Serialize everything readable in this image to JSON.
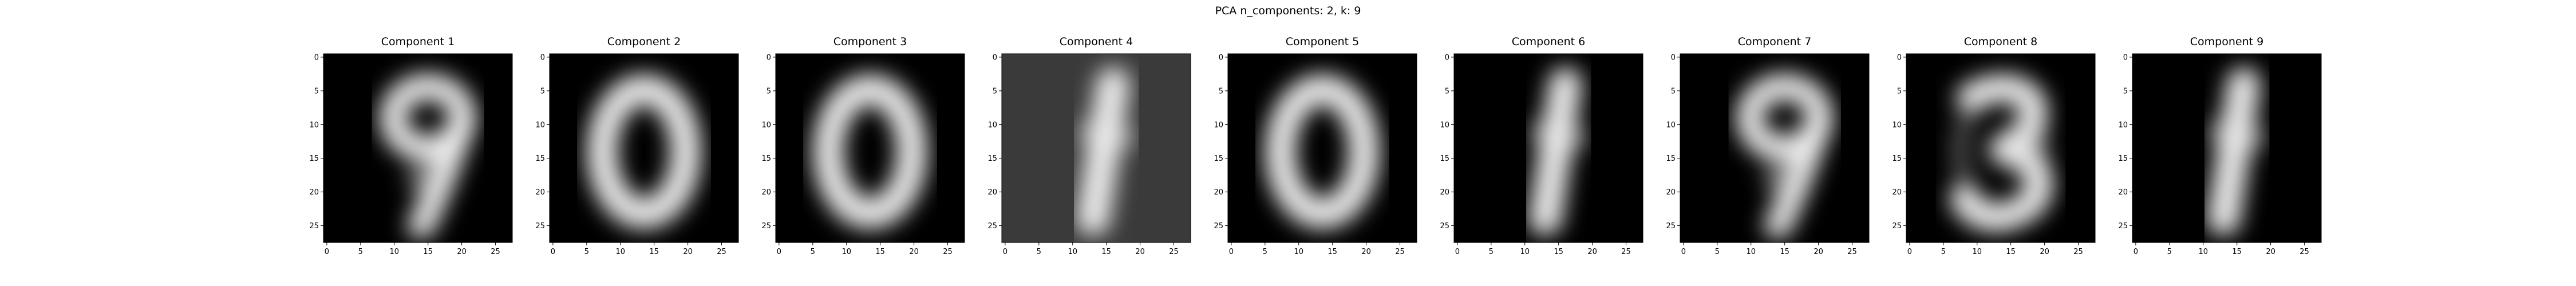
{
  "figure": {
    "title": "PCA n_components: 2, k: 9"
  },
  "chart_data": [
    {
      "type": "heatmap",
      "title": "Component 1",
      "x_ticks": [
        0,
        5,
        10,
        15,
        20,
        25
      ],
      "y_ticks": [
        0,
        5,
        10,
        15,
        20,
        25
      ],
      "xlim": [
        -0.5,
        27.5
      ],
      "ylim": [
        27.5,
        -0.5
      ],
      "colormap": "gray",
      "background": "#000000",
      "depicted_digit": "9"
    },
    {
      "type": "heatmap",
      "title": "Component 2",
      "x_ticks": [
        0,
        5,
        10,
        15,
        20,
        25
      ],
      "y_ticks": [
        0,
        5,
        10,
        15,
        20,
        25
      ],
      "xlim": [
        -0.5,
        27.5
      ],
      "ylim": [
        27.5,
        -0.5
      ],
      "colormap": "gray",
      "background": "#000000",
      "depicted_digit": "0"
    },
    {
      "type": "heatmap",
      "title": "Component 3",
      "x_ticks": [
        0,
        5,
        10,
        15,
        20,
        25
      ],
      "y_ticks": [
        0,
        5,
        10,
        15,
        20,
        25
      ],
      "xlim": [
        -0.5,
        27.5
      ],
      "ylim": [
        27.5,
        -0.5
      ],
      "colormap": "gray",
      "background": "#000000",
      "depicted_digit": "0"
    },
    {
      "type": "heatmap",
      "title": "Component 4",
      "x_ticks": [
        0,
        5,
        10,
        15,
        20,
        25
      ],
      "y_ticks": [
        0,
        5,
        10,
        15,
        20,
        25
      ],
      "xlim": [
        -0.5,
        27.5
      ],
      "ylim": [
        27.5,
        -0.5
      ],
      "colormap": "gray",
      "background": "#3a3a3a",
      "depicted_digit": "1"
    },
    {
      "type": "heatmap",
      "title": "Component 5",
      "x_ticks": [
        0,
        5,
        10,
        15,
        20,
        25
      ],
      "y_ticks": [
        0,
        5,
        10,
        15,
        20,
        25
      ],
      "xlim": [
        -0.5,
        27.5
      ],
      "ylim": [
        27.5,
        -0.5
      ],
      "colormap": "gray",
      "background": "#000000",
      "depicted_digit": "0"
    },
    {
      "type": "heatmap",
      "title": "Component 6",
      "x_ticks": [
        0,
        5,
        10,
        15,
        20,
        25
      ],
      "y_ticks": [
        0,
        5,
        10,
        15,
        20,
        25
      ],
      "xlim": [
        -0.5,
        27.5
      ],
      "ylim": [
        27.5,
        -0.5
      ],
      "colormap": "gray",
      "background": "#000000",
      "depicted_digit": "1"
    },
    {
      "type": "heatmap",
      "title": "Component 7",
      "x_ticks": [
        0,
        5,
        10,
        15,
        20,
        25
      ],
      "y_ticks": [
        0,
        5,
        10,
        15,
        20,
        25
      ],
      "xlim": [
        -0.5,
        27.5
      ],
      "ylim": [
        27.5,
        -0.5
      ],
      "colormap": "gray",
      "background": "#000000",
      "depicted_digit": "9"
    },
    {
      "type": "heatmap",
      "title": "Component 8",
      "x_ticks": [
        0,
        5,
        10,
        15,
        20,
        25
      ],
      "y_ticks": [
        0,
        5,
        10,
        15,
        20,
        25
      ],
      "xlim": [
        -0.5,
        27.5
      ],
      "ylim": [
        27.5,
        -0.5
      ],
      "colormap": "gray",
      "background": "#000000",
      "depicted_digit": "3"
    },
    {
      "type": "heatmap",
      "title": "Component 9",
      "x_ticks": [
        0,
        5,
        10,
        15,
        20,
        25
      ],
      "y_ticks": [
        0,
        5,
        10,
        15,
        20,
        25
      ],
      "xlim": [
        -0.5,
        27.5
      ],
      "ylim": [
        27.5,
        -0.5
      ],
      "colormap": "gray",
      "background": "#000000",
      "depicted_digit": "1"
    }
  ]
}
